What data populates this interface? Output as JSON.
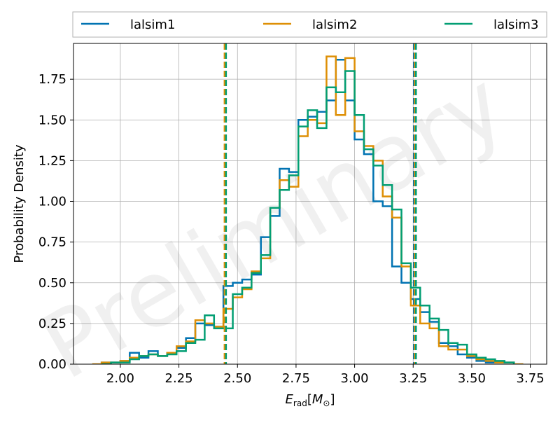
{
  "chart_data": {
    "type": "histogram",
    "title": "",
    "xlabel": "E_rad[M_⊙]",
    "ylabel": "Probability Density",
    "xlim": [
      1.8,
      3.82
    ],
    "ylim": [
      0.0,
      1.97
    ],
    "xticks": [
      2.0,
      2.25,
      2.5,
      2.75,
      3.0,
      3.25,
      3.5,
      3.75
    ],
    "yticks": [
      0.0,
      0.25,
      0.5,
      0.75,
      1.0,
      1.25,
      1.5,
      1.75
    ],
    "xtick_labels": [
      "2.00",
      "2.25",
      "2.50",
      "2.75",
      "3.00",
      "3.25",
      "3.50",
      "3.75"
    ],
    "ytick_labels": [
      "0.00",
      "0.25",
      "0.50",
      "0.75",
      "1.00",
      "1.25",
      "1.50",
      "1.75"
    ],
    "grid": true,
    "legend_position": "top, outside plot",
    "watermark": "Preliminary",
    "series": [
      {
        "name": "lalsim1",
        "color": "#0173b2",
        "style": "step",
        "edges": [
          1.92,
          1.96,
          2.0,
          2.04,
          2.08,
          2.12,
          2.16,
          2.2,
          2.24,
          2.28,
          2.32,
          2.36,
          2.4,
          2.44,
          2.48,
          2.52,
          2.56,
          2.6,
          2.64,
          2.68,
          2.72,
          2.76,
          2.8,
          2.84,
          2.88,
          2.92,
          2.96,
          3.0,
          3.04,
          3.08,
          3.12,
          3.16,
          3.2,
          3.24,
          3.28,
          3.32,
          3.36,
          3.4,
          3.44,
          3.48,
          3.52,
          3.56,
          3.6,
          3.64,
          3.68
        ],
        "density": [
          0.01,
          0.01,
          0.02,
          0.07,
          0.04,
          0.08,
          0.05,
          0.07,
          0.1,
          0.16,
          0.25,
          0.24,
          0.23,
          0.48,
          0.5,
          0.52,
          0.55,
          0.78,
          0.91,
          1.2,
          1.18,
          1.5,
          1.52,
          1.55,
          1.62,
          1.87,
          1.62,
          1.38,
          1.29,
          1.0,
          0.97,
          0.6,
          0.5,
          0.4,
          0.32,
          0.26,
          0.13,
          0.11,
          0.06,
          0.04,
          0.02,
          0.01,
          0.01,
          0.01
        ],
        "quantiles": [
          2.447,
          3.253
        ]
      },
      {
        "name": "lalsim2",
        "color": "#de8f05",
        "style": "step",
        "edges": [
          1.88,
          1.92,
          1.96,
          2.0,
          2.04,
          2.08,
          2.12,
          2.16,
          2.2,
          2.24,
          2.28,
          2.32,
          2.36,
          2.4,
          2.44,
          2.48,
          2.52,
          2.56,
          2.6,
          2.64,
          2.68,
          2.72,
          2.76,
          2.8,
          2.84,
          2.88,
          2.92,
          2.96,
          3.0,
          3.04,
          3.08,
          3.12,
          3.16,
          3.2,
          3.24,
          3.28,
          3.32,
          3.36,
          3.4,
          3.44,
          3.48,
          3.52,
          3.56,
          3.6,
          3.64,
          3.68,
          3.72
        ],
        "density": [
          0.0,
          0.01,
          0.01,
          0.02,
          0.04,
          0.05,
          0.06,
          0.05,
          0.07,
          0.11,
          0.14,
          0.27,
          0.25,
          0.23,
          0.34,
          0.41,
          0.46,
          0.57,
          0.65,
          0.96,
          1.13,
          1.09,
          1.4,
          1.5,
          1.48,
          1.89,
          1.53,
          1.88,
          1.43,
          1.34,
          1.25,
          1.03,
          0.9,
          0.6,
          0.36,
          0.25,
          0.22,
          0.11,
          0.09,
          0.09,
          0.05,
          0.03,
          0.02,
          0.01,
          0.01,
          0.0
        ],
        "quantiles": [
          2.445,
          3.257
        ]
      },
      {
        "name": "lalsim3",
        "color": "#029e73",
        "style": "step",
        "edges": [
          1.92,
          1.96,
          2.0,
          2.04,
          2.08,
          2.12,
          2.16,
          2.2,
          2.24,
          2.28,
          2.32,
          2.36,
          2.4,
          2.44,
          2.48,
          2.52,
          2.56,
          2.6,
          2.64,
          2.68,
          2.72,
          2.76,
          2.8,
          2.84,
          2.88,
          2.92,
          2.96,
          3.0,
          3.04,
          3.08,
          3.12,
          3.16,
          3.2,
          3.24,
          3.28,
          3.32,
          3.36,
          3.4,
          3.44,
          3.48,
          3.52,
          3.56,
          3.6,
          3.64,
          3.68
        ],
        "density": [
          0.0,
          0.01,
          0.01,
          0.03,
          0.05,
          0.06,
          0.05,
          0.06,
          0.08,
          0.13,
          0.15,
          0.3,
          0.22,
          0.22,
          0.43,
          0.47,
          0.56,
          0.67,
          0.96,
          1.07,
          1.16,
          1.46,
          1.56,
          1.45,
          1.7,
          1.67,
          1.8,
          1.53,
          1.32,
          1.22,
          1.1,
          0.95,
          0.62,
          0.47,
          0.36,
          0.28,
          0.21,
          0.13,
          0.12,
          0.06,
          0.04,
          0.03,
          0.02,
          0.01
        ],
        "quantiles": [
          2.451,
          3.262
        ]
      }
    ]
  }
}
